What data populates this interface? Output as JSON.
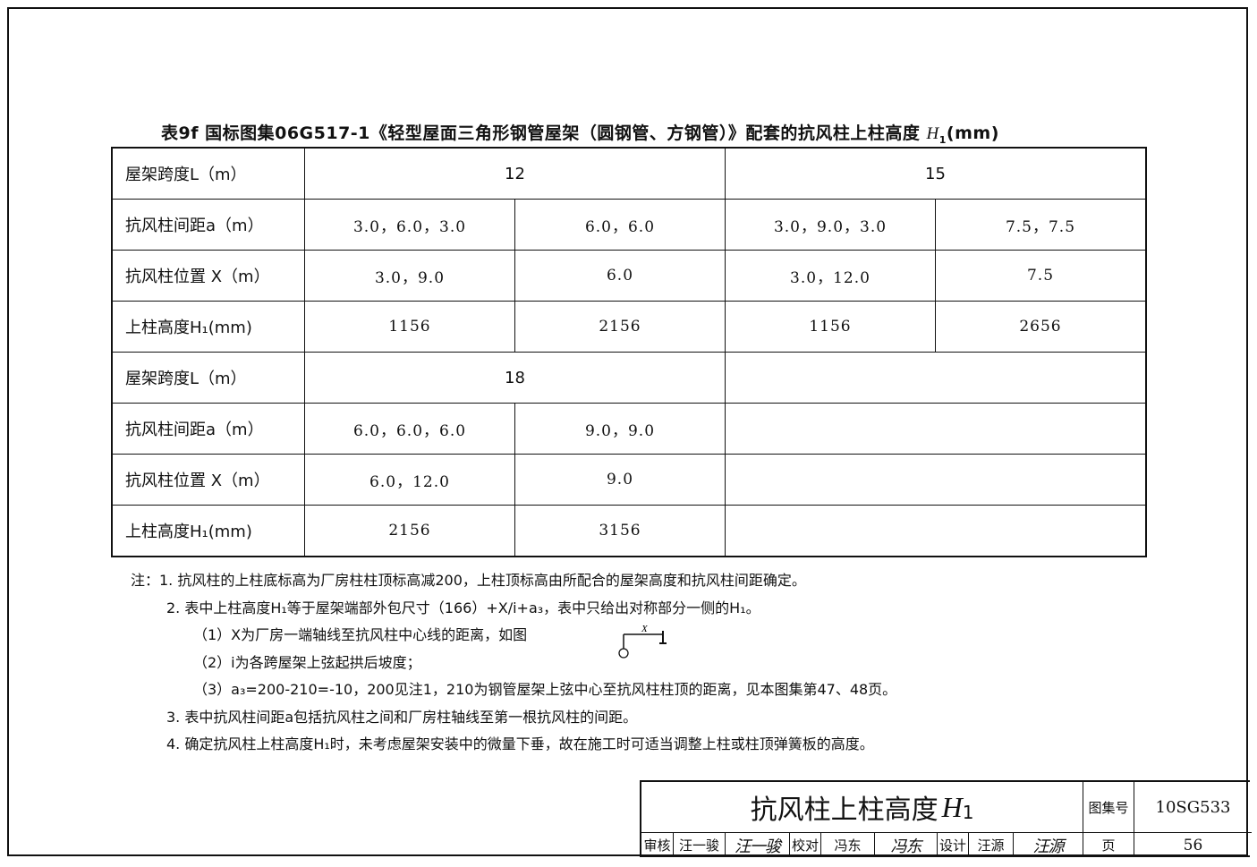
{
  "table_title": {
    "prefix": "表9f  国标图集06G517-1《轻型屋面三角形钢管屋架（圆钢管、方钢管）》配套的抗风柱上柱高度 ",
    "symbol": "H",
    "sub": "1",
    "unit": "(mm)"
  },
  "rows": {
    "span_label": "屋架跨度L（m）",
    "spacing_label": "抗风柱间距a（m）",
    "position_label": "抗风柱位置 X（m）",
    "height_label": "上柱高度H₁(mm)"
  },
  "block1": {
    "spans": [
      "12",
      "15"
    ],
    "spacing": [
      "3.0，6.0，3.0",
      "6.0，6.0",
      "3.0，9.0，3.0",
      "7.5，7.5"
    ],
    "position": [
      "3.0，9.0",
      "6.0",
      "3.0，12.0",
      "7.5"
    ],
    "height": [
      "1156",
      "2156",
      "1156",
      "2656"
    ]
  },
  "block2": {
    "spans": [
      "18"
    ],
    "spacing": [
      "6.0，6.0，6.0",
      "9.0，9.0"
    ],
    "position": [
      "6.0，12.0",
      "9.0"
    ],
    "height": [
      "2156",
      "3156"
    ]
  },
  "notes": [
    "注：1. 抗风柱的上柱底标高为厂房柱柱顶标高减200，上柱顶标高由所配合的屋架高度和抗风柱间距确定。",
    "2. 表中上柱高度H₁等于屋架端部外包尺寸（166）+X/i+a₃，表中只给出对称部分一侧的H₁。",
    "（1）X为厂房一端轴线至抗风柱中心线的距离，如图",
    "（2）i为各跨屋架上弦起拱后坡度；",
    "（3）a₃=200-210=-10，200见注1，210为钢管屋架上弦中心至抗风柱柱顶的距离，见本图集第47、48页。",
    "3. 表中抗风柱间距a包括抗风柱之间和厂房柱轴线至第一根抗风柱的间距。",
    "4. 确定抗风柱上柱高度H₁时，未考虑屋架安装中的微量下垂，故在施工时可适当调整上柱或柱顶弹簧板的高度。"
  ],
  "diagram_label": "X",
  "title_block": {
    "title": "抗风柱上柱高度",
    "title_symbol": "H",
    "title_sub": "1",
    "atlas_label": "图集号",
    "atlas_no": "10SG533",
    "review_label": "审核",
    "reviewer": "汪一骏",
    "reviewer_sig": "汪一骏",
    "check_label": "校对",
    "checker": "冯东",
    "checker_sig": "冯东",
    "design_label": "设计",
    "designer": "汪源",
    "designer_sig": "汪源",
    "page_label": "页",
    "page_no": "56"
  }
}
